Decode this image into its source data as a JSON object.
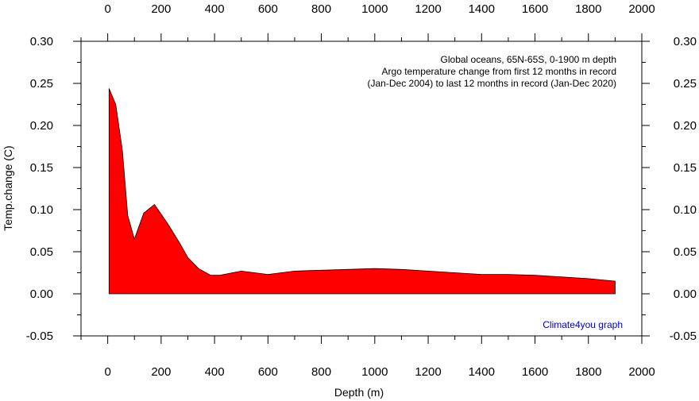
{
  "chart_data": {
    "type": "area",
    "xlabel": "Depth (m)",
    "ylabel": "Temp.change (C)",
    "xlim": [
      -100,
      2000
    ],
    "ylim": [
      -0.05,
      0.3
    ],
    "x_ticks": [
      0,
      200,
      400,
      600,
      800,
      1000,
      1200,
      1400,
      1600,
      1800,
      2000
    ],
    "y_ticks": [
      -0.05,
      0.0,
      0.05,
      0.1,
      0.15,
      0.2,
      0.25,
      0.3
    ],
    "y_tick_labels": [
      "-0.05",
      "0.00",
      "0.05",
      "0.10",
      "0.15",
      "0.20",
      "0.25",
      "0.30"
    ],
    "annotation": [
      "Global oceans, 65N-65S, 0-1900 m depth",
      "Argo temperature change from first 12 months in record",
      "(Jan-Dec 2004) to last 12 months in record (Jan-Dec 2020)"
    ],
    "credit": "Climate4you graph",
    "fill_color": "#ff0000",
    "credit_color": "#0000cc",
    "series": [
      {
        "x": [
          5,
          30,
          55,
          75,
          100,
          135,
          175,
          225,
          270,
          300,
          340,
          385,
          420,
          500,
          600,
          700,
          800,
          900,
          1000,
          1100,
          1200,
          1300,
          1400,
          1500,
          1600,
          1700,
          1800,
          1900
        ],
        "y": [
          0.244,
          0.225,
          0.17,
          0.093,
          0.065,
          0.096,
          0.106,
          0.083,
          0.06,
          0.043,
          0.03,
          0.022,
          0.022,
          0.027,
          0.023,
          0.027,
          0.028,
          0.029,
          0.03,
          0.029,
          0.027,
          0.025,
          0.023,
          0.023,
          0.022,
          0.02,
          0.018,
          0.015
        ]
      }
    ]
  }
}
